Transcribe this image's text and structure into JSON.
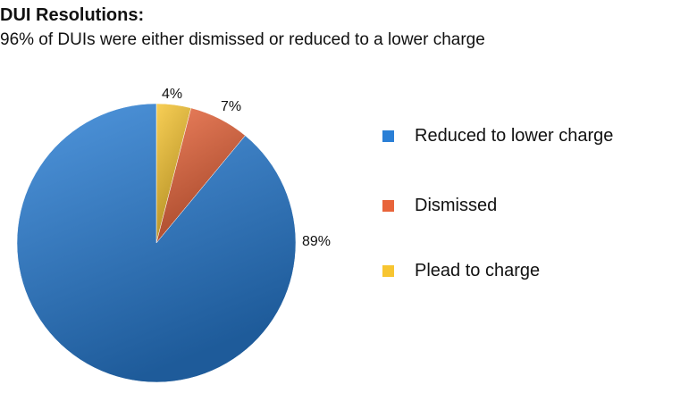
{
  "chart_data": {
    "type": "pie",
    "title": "DUI Resolutions:",
    "subtitle": "96% of DUIs were either dismissed or reduced to a lower charge",
    "legend_position": "right",
    "slices": [
      {
        "name": "Reduced to lower charge",
        "value": 89,
        "label": "89%",
        "color": "#2a7fd6"
      },
      {
        "name": "Dismissed",
        "value": 7,
        "label": "7%",
        "color": "#e8643a"
      },
      {
        "name": "Plead to charge",
        "value": 4,
        "label": "4%",
        "color": "#f7c531"
      }
    ]
  }
}
